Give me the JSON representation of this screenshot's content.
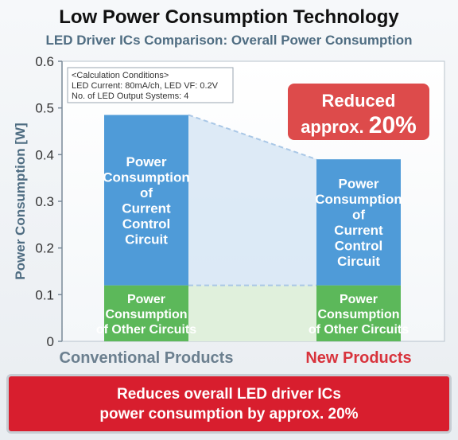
{
  "title": "Low Power Consumption Technology",
  "subtitle": "LED Driver ICs Comparison: Overall Power Consumption",
  "conditions": {
    "heading": "<Calculation Conditions>",
    "line1": "LED Current: 80mA/ch, LED VF: 0.2V",
    "line2": "No. of LED Output Systems: 4"
  },
  "callout": {
    "line1": "Reduced",
    "line2_prefix": "approx. ",
    "line2_value": "20%"
  },
  "banner": {
    "line1": "Reduces overall LED driver ICs",
    "line2": "power consumption by approx. 20%"
  },
  "segment_labels": {
    "current_control": [
      "Power",
      "Consumption",
      "of",
      "Current",
      "Control",
      "Circuit"
    ],
    "other": [
      "Power",
      "Consumption",
      "of Other Circuits"
    ]
  },
  "colors": {
    "current_control": "#4f9bd8",
    "other": "#5cb85a",
    "conventional_label": "#6b7f8f",
    "new_label": "#d8333c",
    "callout": "#dd4b4b",
    "banner": "#d81e2e"
  },
  "chart_data": {
    "type": "bar",
    "stacked": true,
    "categories": [
      "Conventional Products",
      "New Products"
    ],
    "series": [
      {
        "name": "Power Consumption of Other Circuits",
        "values": [
          0.12,
          0.12
        ]
      },
      {
        "name": "Power Consumption of Current Control Circuit",
        "values": [
          0.365,
          0.27
        ]
      }
    ],
    "ylabel": "Power Consumption [W]",
    "ylim": [
      0,
      0.6
    ],
    "yticks": [
      "0",
      "0.1",
      "0.2",
      "0.3",
      "0.4",
      "0.5",
      "0.6"
    ],
    "grid": false
  }
}
